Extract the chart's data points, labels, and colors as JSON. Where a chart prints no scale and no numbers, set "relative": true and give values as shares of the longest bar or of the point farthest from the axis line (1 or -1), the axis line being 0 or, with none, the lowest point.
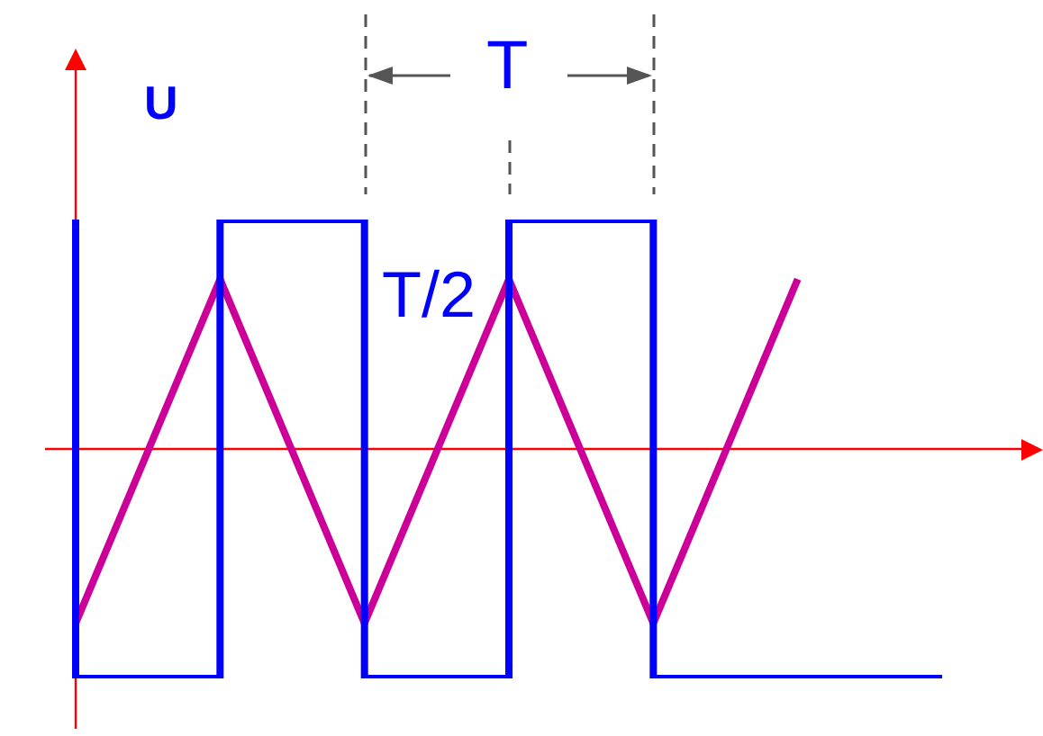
{
  "chart_data": {
    "type": "line",
    "relative": true,
    "ylabel": "U",
    "categories": [
      null,
      null,
      null,
      null,
      null,
      null,
      null
    ],
    "series": [
      {
        "type": "step",
        "color": "#0000ff",
        "values": [
          1,
          -1,
          1,
          -1,
          1,
          -1,
          -1
        ]
      },
      {
        "type": "line",
        "color": "#cc0099",
        "values": [
          -0.76,
          0.74,
          -0.76,
          0.74,
          -0.76,
          0.74,
          null
        ]
      }
    ],
    "ref_lines": [
      {
        "axis": "y",
        "value": 0,
        "color": "#ff0000"
      }
    ],
    "annotations": [
      "T",
      "T/2"
    ],
    "legend": false,
    "tick_labels": false,
    "marker": "none"
  }
}
